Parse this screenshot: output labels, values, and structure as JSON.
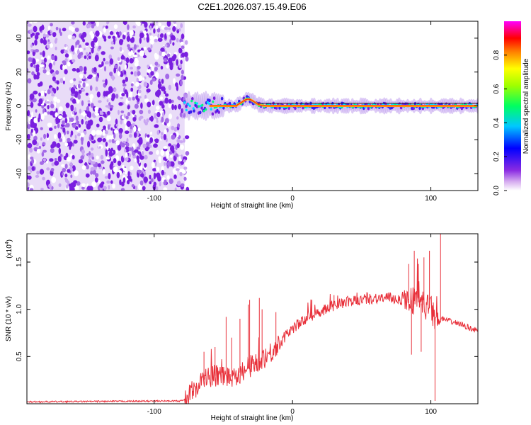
{
  "title": "C2E1.2026.037.15.49.E06",
  "chart_data": [
    {
      "type": "heatmap",
      "name": "spectrogram",
      "xlabel": "Height of straight line (km)",
      "ylabel": "Frequency (Hz)",
      "xlim": [
        -192,
        134
      ],
      "ylim": [
        -50,
        50
      ],
      "xticks": [
        -100,
        0,
        100
      ],
      "yticks": [
        -40,
        -20,
        0,
        20,
        40
      ],
      "noise_region_x": [
        -192,
        -78
      ],
      "signal_region_x": [
        -78,
        134
      ],
      "colorbar": {
        "label": "Normalized spectral amplitude",
        "range": [
          0,
          1
        ],
        "ticks": [
          0.0,
          0.2,
          0.4,
          0.6,
          0.8
        ],
        "tick_labels": [
          "0.0",
          "0.2",
          "0.4",
          "0.6",
          "0.8"
        ],
        "colors": [
          "#ffffff",
          "#8a2be2",
          "#0000ff",
          "#00ffff",
          "#00ff00",
          "#ffff00",
          "#ff0000",
          "#ff00ff"
        ]
      }
    },
    {
      "type": "line",
      "name": "snr",
      "xlabel": "Height of straight line (km)",
      "ylabel": "SNR (10 * v/v)",
      "scale_label": "(x10",
      "scale_exponent": "4",
      "scale_suffix": ")",
      "xlim": [
        -192,
        134
      ],
      "ylim": [
        0,
        1.8
      ],
      "xticks": [
        -100,
        0,
        100
      ],
      "yticks": [
        0.5,
        1.0,
        1.5
      ],
      "ytick_labels": [
        "0.5",
        "1.0",
        "1.5"
      ],
      "color": "#e8303a",
      "envelope_x": [
        -192,
        -80,
        -75,
        -70,
        -65,
        -60,
        -55,
        -50,
        -45,
        -40,
        -35,
        -30,
        -25,
        -20,
        -15,
        -10,
        -5,
        0,
        5,
        10,
        20,
        30,
        40,
        50,
        60,
        70,
        80,
        85,
        90,
        95,
        100,
        103,
        105,
        108,
        112,
        120,
        134
      ],
      "envelope_y": [
        0.02,
        0.03,
        0.08,
        0.18,
        0.25,
        0.28,
        0.3,
        0.3,
        0.28,
        0.32,
        0.34,
        0.4,
        0.45,
        0.5,
        0.55,
        0.62,
        0.72,
        0.8,
        0.85,
        0.9,
        0.98,
        1.04,
        1.08,
        1.1,
        1.12,
        1.12,
        1.1,
        1.1,
        1.08,
        1.05,
        1.0,
        0.9,
        0.85,
        0.9,
        0.88,
        0.85,
        0.77
      ],
      "spikes": [
        {
          "x": -31,
          "y": 1.1
        },
        {
          "x": -24,
          "y": 1.12
        },
        {
          "x": -32,
          "y": 1.05
        },
        {
          "x": -22,
          "y": 1.0
        },
        {
          "x": -12,
          "y": 0.97
        },
        {
          "x": -48,
          "y": 0.92
        },
        {
          "x": -38,
          "y": 0.9
        },
        {
          "x": -64,
          "y": 0.55
        },
        {
          "x": -56,
          "y": 0.6
        },
        {
          "x": -44,
          "y": 0.7
        },
        {
          "x": 14,
          "y": 1.1
        },
        {
          "x": 30,
          "y": 1.15
        },
        {
          "x": 84,
          "y": 1.48
        },
        {
          "x": 88,
          "y": 1.62
        },
        {
          "x": 91,
          "y": 1.48
        },
        {
          "x": 95,
          "y": 1.55
        },
        {
          "x": 99,
          "y": 1.62
        },
        {
          "x": 107,
          "y": 1.8
        },
        {
          "x": 103,
          "y": 0.03
        },
        {
          "x": 86,
          "y": 0.52
        },
        {
          "x": 93,
          "y": 0.55
        }
      ]
    }
  ]
}
